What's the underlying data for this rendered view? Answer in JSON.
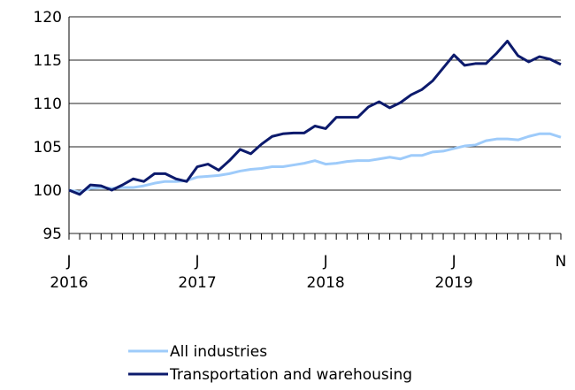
{
  "chart_data": {
    "type": "line",
    "categories": [
      [
        "J",
        "2016"
      ],
      null,
      null,
      null,
      null,
      null,
      null,
      null,
      null,
      null,
      null,
      null,
      [
        "J",
        "2017"
      ],
      null,
      null,
      null,
      null,
      null,
      null,
      null,
      null,
      null,
      null,
      null,
      [
        "J",
        "2018"
      ],
      null,
      null,
      null,
      null,
      null,
      null,
      null,
      null,
      null,
      null,
      null,
      [
        "J",
        "2019"
      ],
      null,
      null,
      null,
      null,
      null,
      null,
      null,
      null,
      null,
      [
        "N"
      ]
    ],
    "series": [
      {
        "name": "All industries",
        "color": "#9ecbfa",
        "values": [
          100,
          99.8,
          100.2,
          100.3,
          100.2,
          100.3,
          100.3,
          100.5,
          100.8,
          101.0,
          101.0,
          101.1,
          101.5,
          101.6,
          101.7,
          101.9,
          102.2,
          102.4,
          102.5,
          102.7,
          102.7,
          102.9,
          103.1,
          103.4,
          103.0,
          103.1,
          103.3,
          103.4,
          103.4,
          103.6,
          103.8,
          103.6,
          104.0,
          104.0,
          104.4,
          104.5,
          104.8,
          105.1,
          105.2,
          105.7,
          105.9,
          105.9,
          105.8,
          106.2,
          106.5,
          106.5,
          106.1
        ]
      },
      {
        "name": "Transportation and warehousing",
        "color": "#0c1a6c",
        "values": [
          100,
          99.5,
          100.6,
          100.5,
          100.0,
          100.6,
          101.3,
          101.0,
          101.9,
          101.9,
          101.3,
          101.0,
          102.7,
          103.0,
          102.3,
          103.4,
          104.7,
          104.2,
          105.3,
          106.2,
          106.5,
          106.6,
          106.6,
          107.4,
          107.1,
          108.4,
          108.4,
          108.4,
          109.6,
          110.2,
          109.5,
          110.1,
          111.0,
          111.6,
          112.6,
          114.1,
          115.6,
          114.4,
          114.6,
          114.6,
          115.8,
          117.2,
          115.5,
          114.8,
          115.4,
          115.1,
          114.5
        ]
      }
    ],
    "ylim": [
      95,
      120
    ],
    "yticks": [
      95,
      100,
      105,
      110,
      115,
      120
    ],
    "grid": true
  }
}
